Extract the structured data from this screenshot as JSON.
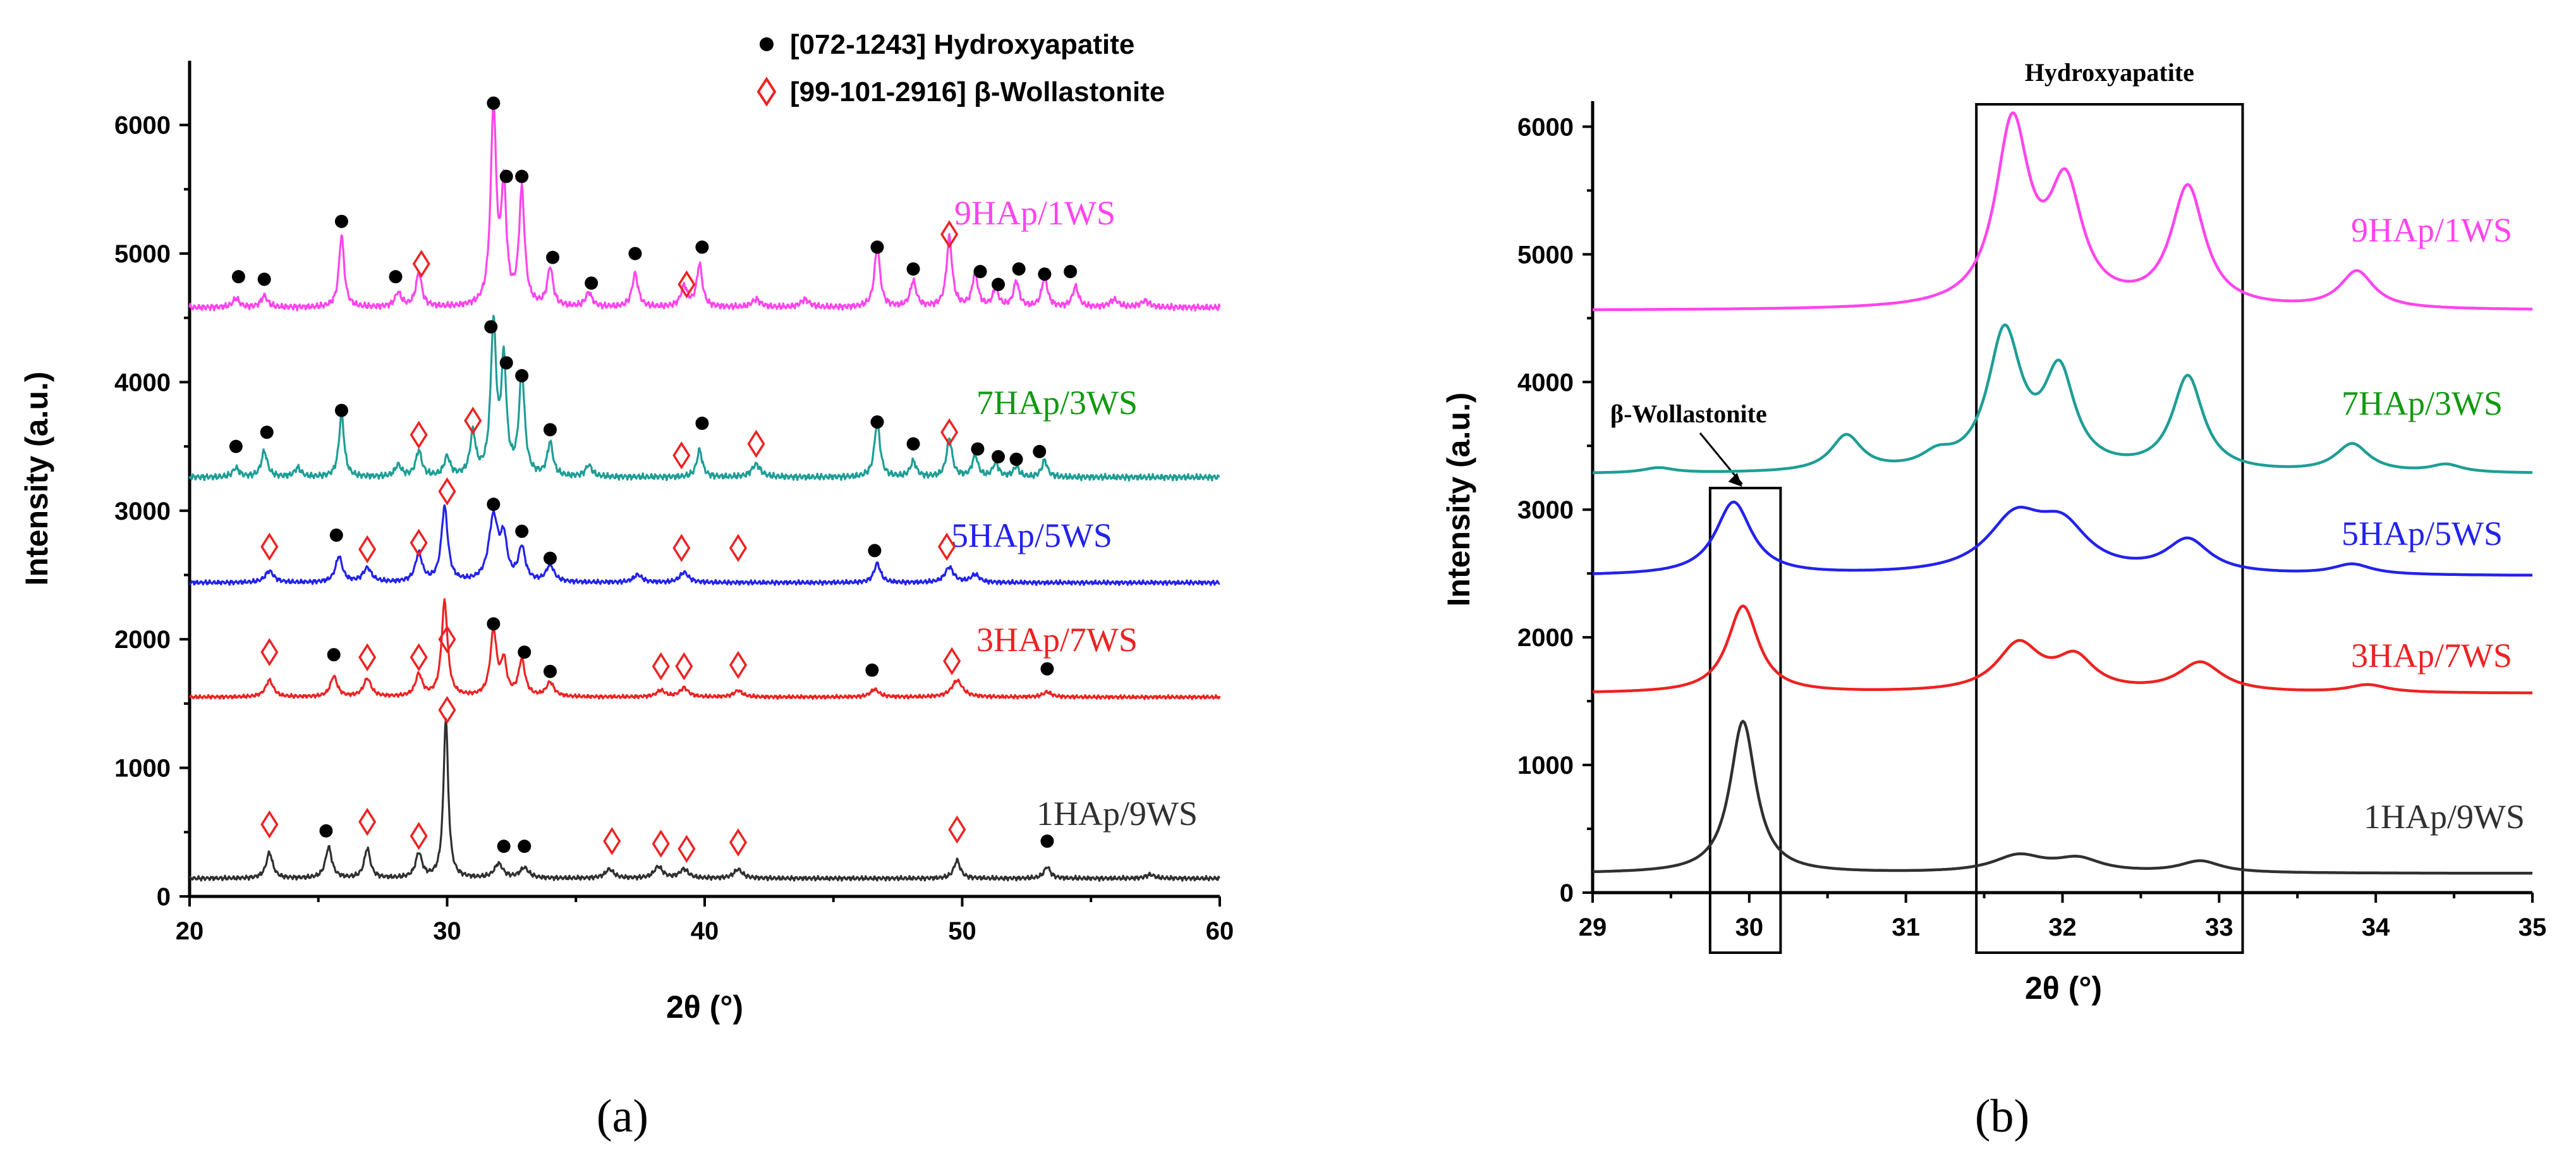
{
  "panel_labels": {
    "a": "(a)",
    "b": "(b)"
  },
  "legend": {
    "hydroxyapatite": "[072-1243] Hydroxyapatite",
    "wollastonite": "[99-101-2916] β-Wollastonite"
  },
  "colors": {
    "9HAp/1WS": "#ff44ee",
    "7HAp/3WS": "#1e9e96",
    "5HAp/5WS": "#2222ee",
    "3HAp/7WS": "#ee2222",
    "1HAp/9WS": "#303030",
    "label_7HAp/3WS": "#119911",
    "marker_hap": "#000000",
    "marker_ws": "#ee2222"
  },
  "chart_data": [
    {
      "type": "line",
      "panel": "(a)",
      "xlabel": "2θ (°)",
      "ylabel": "Intensity (a.u.)",
      "xlim": [
        20,
        60
      ],
      "ylim": [
        0,
        6500
      ],
      "xticks": [
        20,
        30,
        40,
        50,
        60
      ],
      "yticks": [
        0,
        1000,
        2000,
        3000,
        4000,
        5000,
        6000
      ],
      "series": [
        {
          "name": "9HAp/1WS",
          "baseline": 4580,
          "noise": 25,
          "peaks": [
            [
              21.8,
              70,
              0.15
            ],
            [
              22.9,
              90,
              0.15
            ],
            [
              25.9,
              560,
              0.12
            ],
            [
              28.1,
              110,
              0.15
            ],
            [
              28.9,
              260,
              0.14
            ],
            [
              31.8,
              1520,
              0.13
            ],
            [
              32.2,
              880,
              0.12
            ],
            [
              32.9,
              890,
              0.13
            ],
            [
              34.0,
              300,
              0.13
            ],
            [
              35.5,
              110,
              0.15
            ],
            [
              37.3,
              260,
              0.14
            ],
            [
              39.2,
              160,
              0.15
            ],
            [
              39.8,
              330,
              0.13
            ],
            [
              42.0,
              60,
              0.2
            ],
            [
              43.9,
              60,
              0.2
            ],
            [
              46.7,
              470,
              0.13
            ],
            [
              48.1,
              200,
              0.14
            ],
            [
              49.5,
              540,
              0.13
            ],
            [
              50.5,
              260,
              0.13
            ],
            [
              51.3,
              140,
              0.13
            ],
            [
              52.1,
              200,
              0.13
            ],
            [
              53.2,
              240,
              0.13
            ],
            [
              54.4,
              160,
              0.14
            ],
            [
              55.9,
              60,
              0.2
            ],
            [
              57.1,
              50,
              0.2
            ]
          ],
          "markers_hap": [
            [
              21.9,
              4820
            ],
            [
              22.9,
              4800
            ],
            [
              25.9,
              5250
            ],
            [
              28.0,
              4820
            ],
            [
              31.8,
              6170
            ],
            [
              32.3,
              5600
            ],
            [
              32.9,
              5600
            ],
            [
              34.1,
              4970
            ],
            [
              35.6,
              4770
            ],
            [
              37.3,
              5000
            ],
            [
              39.9,
              5050
            ],
            [
              46.7,
              5050
            ],
            [
              48.1,
              4880
            ],
            [
              50.7,
              4860
            ],
            [
              51.4,
              4760
            ],
            [
              52.2,
              4880
            ],
            [
              53.2,
              4840
            ],
            [
              54.2,
              4860
            ]
          ],
          "markers_ws": [
            [
              29.0,
              4920
            ],
            [
              39.3,
              4760
            ],
            [
              49.5,
              5150
            ]
          ],
          "label": "9HAp/1WS"
        },
        {
          "name": "7HAp/3WS",
          "baseline": 3260,
          "noise": 25,
          "peaks": [
            [
              21.8,
              70,
              0.15
            ],
            [
              22.9,
              200,
              0.14
            ],
            [
              24.2,
              70,
              0.15
            ],
            [
              25.9,
              490,
              0.12
            ],
            [
              28.1,
              90,
              0.15
            ],
            [
              28.9,
              200,
              0.14
            ],
            [
              30.0,
              150,
              0.14
            ],
            [
              31.0,
              330,
              0.13
            ],
            [
              31.8,
              1160,
              0.13
            ],
            [
              32.2,
              860,
              0.12
            ],
            [
              32.9,
              800,
              0.13
            ],
            [
              34.0,
              260,
              0.13
            ],
            [
              35.5,
              90,
              0.15
            ],
            [
              39.8,
              210,
              0.13
            ],
            [
              42.0,
              100,
              0.2
            ],
            [
              46.7,
              430,
              0.13
            ],
            [
              48.1,
              120,
              0.14
            ],
            [
              49.5,
              300,
              0.13
            ],
            [
              50.5,
              170,
              0.13
            ],
            [
              51.3,
              110,
              0.13
            ],
            [
              52.1,
              80,
              0.13
            ],
            [
              53.2,
              130,
              0.13
            ]
          ],
          "markers_hap": [
            [
              21.8,
              3500
            ],
            [
              23.0,
              3610
            ],
            [
              25.9,
              3780
            ],
            [
              31.7,
              4430
            ],
            [
              32.3,
              4150
            ],
            [
              32.9,
              4050
            ],
            [
              34.0,
              3630
            ],
            [
              39.9,
              3680
            ],
            [
              46.7,
              3690
            ],
            [
              48.1,
              3520
            ],
            [
              50.6,
              3480
            ],
            [
              51.4,
              3420
            ],
            [
              52.1,
              3400
            ],
            [
              53.0,
              3460
            ]
          ],
          "markers_ws": [
            [
              28.9,
              3590
            ],
            [
              31.0,
              3700
            ],
            [
              39.1,
              3430
            ],
            [
              42.0,
              3520
            ],
            [
              49.5,
              3610
            ]
          ],
          "label": "7HAp/3WS"
        },
        {
          "name": "5HAp/5WS",
          "baseline": 2440,
          "noise": 18,
          "peaks": [
            [
              23.1,
              90,
              0.2
            ],
            [
              25.8,
              200,
              0.16
            ],
            [
              26.9,
              110,
              0.2
            ],
            [
              28.9,
              220,
              0.16
            ],
            [
              29.9,
              580,
              0.15
            ],
            [
              31.8,
              500,
              0.22
            ],
            [
              32.2,
              300,
              0.15
            ],
            [
              32.9,
              260,
              0.16
            ],
            [
              34.0,
              130,
              0.18
            ],
            [
              37.4,
              60,
              0.2
            ],
            [
              39.2,
              80,
              0.2
            ],
            [
              46.7,
              150,
              0.15
            ],
            [
              49.5,
              120,
              0.2
            ],
            [
              50.5,
              60,
              0.2
            ]
          ],
          "markers_hap": [
            [
              25.7,
              2810
            ],
            [
              31.8,
              3050
            ],
            [
              32.9,
              2840
            ],
            [
              34.0,
              2630
            ],
            [
              46.6,
              2690
            ]
          ],
          "markers_ws": [
            [
              23.1,
              2720
            ],
            [
              26.9,
              2700
            ],
            [
              28.9,
              2750
            ],
            [
              30.0,
              3150
            ],
            [
              39.1,
              2710
            ],
            [
              41.3,
              2710
            ],
            [
              49.4,
              2720
            ]
          ],
          "label": "5HAp/5WS"
        },
        {
          "name": "3HAp/7WS",
          "baseline": 1550,
          "noise": 15,
          "peaks": [
            [
              23.1,
              130,
              0.18
            ],
            [
              25.6,
              160,
              0.16
            ],
            [
              26.9,
              140,
              0.18
            ],
            [
              28.9,
              170,
              0.16
            ],
            [
              29.9,
              740,
              0.14
            ],
            [
              31.8,
              500,
              0.15
            ],
            [
              32.2,
              260,
              0.13
            ],
            [
              32.9,
              280,
              0.15
            ],
            [
              34.0,
              110,
              0.18
            ],
            [
              38.3,
              50,
              0.2
            ],
            [
              39.2,
              70,
              0.2
            ],
            [
              41.3,
              50,
              0.2
            ],
            [
              46.6,
              60,
              0.2
            ],
            [
              49.8,
              130,
              0.25
            ],
            [
              53.3,
              40,
              0.2
            ]
          ],
          "markers_hap": [
            [
              25.6,
              1880
            ],
            [
              31.8,
              2120
            ],
            [
              33.0,
              1900
            ],
            [
              34.0,
              1750
            ],
            [
              46.5,
              1760
            ],
            [
              53.3,
              1770
            ]
          ],
          "markers_ws": [
            [
              23.1,
              1900
            ],
            [
              26.9,
              1860
            ],
            [
              28.9,
              1860
            ],
            [
              30.0,
              2000
            ],
            [
              38.3,
              1790
            ],
            [
              39.2,
              1790
            ],
            [
              41.3,
              1800
            ],
            [
              49.6,
              1830
            ]
          ],
          "label": "3HAp/7WS"
        },
        {
          "name": "1HAp/9WS",
          "baseline": 140,
          "noise": 18,
          "peaks": [
            [
              23.1,
              200,
              0.15
            ],
            [
              25.4,
              240,
              0.15
            ],
            [
              26.9,
              230,
              0.14
            ],
            [
              28.9,
              190,
              0.15
            ],
            [
              29.95,
              1240,
              0.11
            ],
            [
              32.0,
              110,
              0.2
            ],
            [
              33.0,
              80,
              0.2
            ],
            [
              36.3,
              70,
              0.2
            ],
            [
              38.2,
              90,
              0.2
            ],
            [
              39.2,
              70,
              0.2
            ],
            [
              41.3,
              70,
              0.2
            ],
            [
              49.8,
              140,
              0.15
            ],
            [
              53.3,
              90,
              0.15
            ],
            [
              57.3,
              30,
              0.2
            ]
          ],
          "markers_hap": [
            [
              25.3,
              510
            ],
            [
              32.2,
              390
            ],
            [
              33.0,
              390
            ],
            [
              53.3,
              430
            ]
          ],
          "markers_ws": [
            [
              23.1,
              560
            ],
            [
              26.9,
              580
            ],
            [
              28.9,
              470
            ],
            [
              30.0,
              1450
            ],
            [
              36.4,
              430
            ],
            [
              38.3,
              410
            ],
            [
              39.3,
              370
            ],
            [
              41.3,
              420
            ],
            [
              49.8,
              520
            ]
          ],
          "label": "1HAp/9WS"
        }
      ]
    },
    {
      "type": "line",
      "panel": "(b)",
      "xlabel": "2θ (°)",
      "ylabel": "Intensity (a.u.)",
      "xlim": [
        29,
        35
      ],
      "ylim": [
        0,
        6200
      ],
      "xticks": [
        29,
        30,
        31,
        32,
        33,
        34,
        35
      ],
      "yticks": [
        0,
        1000,
        2000,
        3000,
        4000,
        5000,
        6000
      ],
      "annotations": {
        "hap_box_label": "Hydroxyapatite",
        "ws_box_label": "β-Wollastonite",
        "hap_box_x": [
          31.45,
          33.15
        ],
        "ws_box_x": [
          29.75,
          30.2
        ]
      },
      "series": [
        {
          "name": "9HAp/1WS",
          "baseline": 4560,
          "peaks": [
            [
              31.68,
              1420,
              0.13
            ],
            [
              32.02,
              900,
              0.13
            ],
            [
              32.8,
              940,
              0.13
            ],
            [
              33.88,
              290,
              0.13
            ]
          ],
          "label": "9HAp/1WS"
        },
        {
          "name": "7HAp/3WS",
          "baseline": 3280,
          "peaks": [
            [
              29.42,
              40,
              0.12
            ],
            [
              30.62,
              280,
              0.12
            ],
            [
              31.2,
              100,
              0.12
            ],
            [
              31.63,
              1070,
              0.13
            ],
            [
              31.98,
              740,
              0.12
            ],
            [
              32.8,
              740,
              0.12
            ],
            [
              33.85,
              220,
              0.13
            ],
            [
              34.45,
              60,
              0.12
            ]
          ],
          "label": "7HAp/3WS"
        },
        {
          "name": "5HAp/5WS",
          "baseline": 2480,
          "peaks": [
            [
              29.9,
              570,
              0.14
            ],
            [
              31.7,
              420,
              0.22
            ],
            [
              32.0,
              330,
              0.2
            ],
            [
              32.8,
              260,
              0.17
            ],
            [
              33.85,
              80,
              0.15
            ]
          ],
          "label": "5HAp/5WS"
        },
        {
          "name": "3HAp/7WS",
          "baseline": 1560,
          "peaks": [
            [
              29.96,
              680,
              0.12
            ],
            [
              31.72,
              370,
              0.17
            ],
            [
              32.08,
              250,
              0.15
            ],
            [
              32.88,
              230,
              0.17
            ],
            [
              33.95,
              60,
              0.15
            ]
          ],
          "label": "3HAp/7WS"
        },
        {
          "name": "1HAp/9WS",
          "baseline": 150,
          "peaks": [
            [
              29.96,
              1190,
              0.1
            ],
            [
              31.72,
              130,
              0.2
            ],
            [
              32.1,
              100,
              0.18
            ],
            [
              32.88,
              90,
              0.16
            ]
          ],
          "label": "1HAp/9WS"
        }
      ]
    }
  ]
}
